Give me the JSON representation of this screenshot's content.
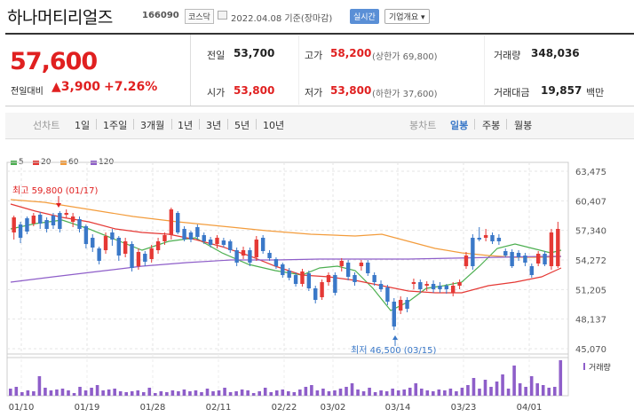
{
  "header": {
    "name": "하나머티리얼즈",
    "code": "166090",
    "market": "코스닥",
    "date_text": "2022.04.08 기준(장마감)",
    "live_btn": "실시간",
    "info_btn": "기업개요 ▾"
  },
  "price": {
    "current": "57,600",
    "change_label": "전일대비",
    "change_value": "▲3,900",
    "change_pct": "+7.26%"
  },
  "stats": {
    "prev_label": "전일",
    "prev_value": "53,700",
    "high_label": "고가",
    "high_value": "58,200",
    "high_sub": "(상한가 69,800)",
    "volume_label": "거래량",
    "volume_value": "348,036",
    "open_label": "시가",
    "open_value": "53,800",
    "low_label": "저가",
    "low_value": "53,800",
    "low_sub": "(하한가 37,600)",
    "amount_label": "거래대금",
    "amount_value": "19,857",
    "amount_unit": "백만"
  },
  "toolbar": {
    "line_label": "선차트",
    "ranges": [
      "1일",
      "1주일",
      "3개월",
      "1년",
      "3년",
      "5년",
      "10년"
    ],
    "candle_label": "봉차트",
    "candle_modes": [
      "일봉",
      "주봉",
      "월봉"
    ],
    "active_mode": "일봉"
  },
  "legend": [
    {
      "label": "5",
      "color": "#4caf50"
    },
    {
      "label": "20",
      "color": "#e53935"
    },
    {
      "label": "60",
      "color": "#f39c3c"
    },
    {
      "label": "120",
      "color": "#8e5ec9"
    }
  ],
  "chart_data": {
    "type": "candlestick",
    "y_ticks": [
      "63,475",
      "60,407",
      "57,340",
      "54,272",
      "51,205",
      "48,137",
      "45,070"
    ],
    "x_ticks": [
      "01/10",
      "01/19",
      "01/28",
      "02/11",
      "02/22",
      "03/02",
      "03/14",
      "03/23",
      "04/01"
    ],
    "high_annotation": "최고 59,800 (01/17)",
    "low_annotation": "최저 46,500 (03/15)",
    "volume_label": "거래량",
    "ylim": [
      45070,
      63475
    ],
    "up_color": "#e53935",
    "down_color": "#3a78c8"
  }
}
